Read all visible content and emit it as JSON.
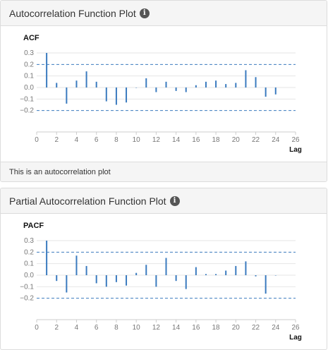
{
  "acf_panel": {
    "title": "Autocorrelation Function Plot",
    "info_icon": "info-icon",
    "footer_text": "This is an autocorrelation plot"
  },
  "pacf_panel": {
    "title": "Partial Autocorrelation Function Plot",
    "info_icon": "info-icon"
  },
  "colors": {
    "bar": "#3b7bbf",
    "confidence_line": "#3b7bbf",
    "grid": "#e6e6e6",
    "axis": "#cccccc"
  },
  "chart_data": [
    {
      "type": "bar",
      "ylabel": "ACF",
      "xlabel": "Lag",
      "xlim": [
        0,
        26
      ],
      "ylim": [
        -0.3,
        0.3
      ],
      "xticks": [
        0,
        2,
        4,
        6,
        8,
        10,
        12,
        14,
        16,
        18,
        20,
        22,
        24,
        26
      ],
      "yticks": [
        -0.2,
        -0.1,
        0.0,
        0.1,
        0.2,
        0.3
      ],
      "ytick_labels": [
        "−0.2",
        "−0.1",
        "0.0",
        "0.1",
        "0.2",
        "0.3"
      ],
      "confidence_bounds": [
        0.2,
        -0.2
      ],
      "x": [
        1,
        2,
        3,
        4,
        5,
        6,
        7,
        8,
        9,
        10,
        11,
        12,
        13,
        14,
        15,
        16,
        17,
        18,
        19,
        20,
        21,
        22,
        23,
        24
      ],
      "values": [
        0.3,
        0.04,
        -0.14,
        0.06,
        0.14,
        0.05,
        -0.12,
        -0.15,
        -0.13,
        0.0,
        0.08,
        -0.04,
        0.05,
        -0.03,
        -0.04,
        0.02,
        0.05,
        0.06,
        0.03,
        0.04,
        0.15,
        0.09,
        -0.08,
        -0.06
      ]
    },
    {
      "type": "bar",
      "ylabel": "PACF",
      "xlabel": "Lag",
      "xlim": [
        0,
        26
      ],
      "ylim": [
        -0.3,
        0.3
      ],
      "xticks": [
        0,
        2,
        4,
        6,
        8,
        10,
        12,
        14,
        16,
        18,
        20,
        22,
        24,
        26
      ],
      "yticks": [
        -0.2,
        -0.1,
        0.0,
        0.1,
        0.2,
        0.3
      ],
      "ytick_labels": [
        "−0.2",
        "−0.1",
        "0.0",
        "0.1",
        "0.2",
        "0.3"
      ],
      "confidence_bounds": [
        0.2,
        -0.2
      ],
      "x": [
        1,
        2,
        3,
        4,
        5,
        6,
        7,
        8,
        9,
        10,
        11,
        12,
        13,
        14,
        15,
        16,
        17,
        18,
        19,
        20,
        21,
        22,
        23,
        24
      ],
      "values": [
        0.3,
        -0.05,
        -0.15,
        0.17,
        0.08,
        -0.07,
        -0.1,
        -0.06,
        -0.09,
        0.02,
        0.09,
        -0.1,
        0.15,
        -0.05,
        -0.12,
        0.07,
        0.01,
        0.01,
        0.04,
        0.08,
        0.12,
        -0.01,
        -0.16,
        0.0
      ]
    }
  ]
}
